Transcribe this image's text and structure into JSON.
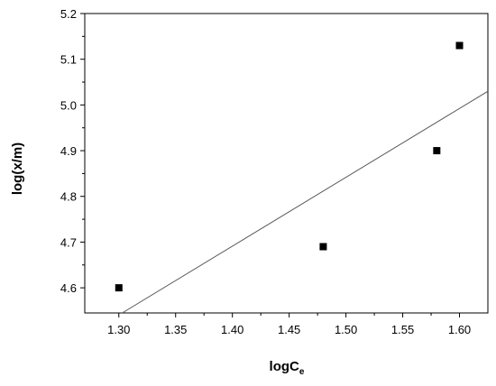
{
  "chart_data": {
    "type": "scatter",
    "title": "",
    "xlabel": {
      "main": "logC",
      "sub": "e"
    },
    "ylabel": "log(x/m)",
    "xlim": [
      1.27,
      1.625
    ],
    "ylim": [
      4.545,
      5.2
    ],
    "x_ticks": [
      "1.30",
      "1.35",
      "1.40",
      "1.45",
      "1.50",
      "1.55",
      "1.60"
    ],
    "y_ticks": [
      "4.6",
      "4.7",
      "4.8",
      "4.9",
      "5.0",
      "5.1",
      "5.2"
    ],
    "grid": false,
    "legend": "none",
    "points": [
      {
        "x": 1.3,
        "y": 4.6
      },
      {
        "x": 1.48,
        "y": 4.69
      },
      {
        "x": 1.58,
        "y": 4.9
      },
      {
        "x": 1.6,
        "y": 5.13
      }
    ],
    "fit_line": {
      "x0": 1.303,
      "y0": 4.545,
      "x1": 1.625,
      "y1": 5.03
    },
    "colors": {
      "axis": "#000000",
      "marker": "#000000",
      "fit": "#555555"
    }
  }
}
